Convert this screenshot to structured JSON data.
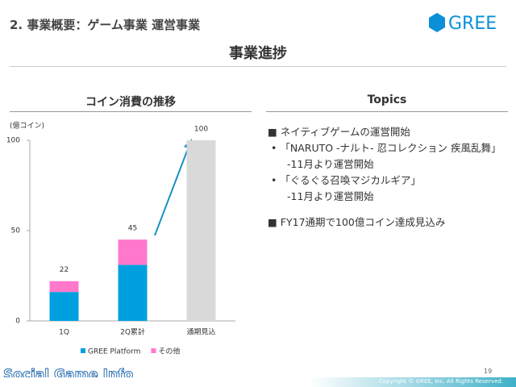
{
  "header": {
    "title": "2. 事業概要：ゲーム事業 運営事業",
    "logo": "GREE",
    "subtitle": "事業進捗"
  },
  "chart_heading": "コイン消費の推移",
  "chart_data": {
    "type": "bar",
    "y_label": "(億コイン)",
    "categories": [
      "1Q",
      "2Q累計",
      "通期見込"
    ],
    "series": [
      {
        "name": "GREE Platform",
        "color": "#00a0e0",
        "values": [
          16,
          31,
          null
        ]
      },
      {
        "name": "その他",
        "color": "#ff78cc",
        "values": [
          6,
          14,
          null
        ]
      }
    ],
    "totals": [
      22,
      45,
      100
    ],
    "forecast_color": "#d9d9d9",
    "ylim": [
      0,
      100
    ],
    "yticks": [
      0,
      50,
      100
    ]
  },
  "topics": {
    "heading": "Topics",
    "items": [
      {
        "text": "ネイティブゲームの運営開始",
        "sub": [
          {
            "text": "「NARUTO -ナルト- 忍コレクション 疾風乱舞」",
            "note": "-11月より運営開始"
          },
          {
            "text": "「ぐるぐる召喚マジカルギア」",
            "note": "-11月より運営開始"
          }
        ]
      },
      {
        "text": "FY17通期で100億コイン達成見込み"
      }
    ]
  },
  "footer": {
    "watermark": "Social Game Info",
    "page": "19",
    "copyright": "Copyright © GREE, Inc. All Rights Reserved."
  }
}
